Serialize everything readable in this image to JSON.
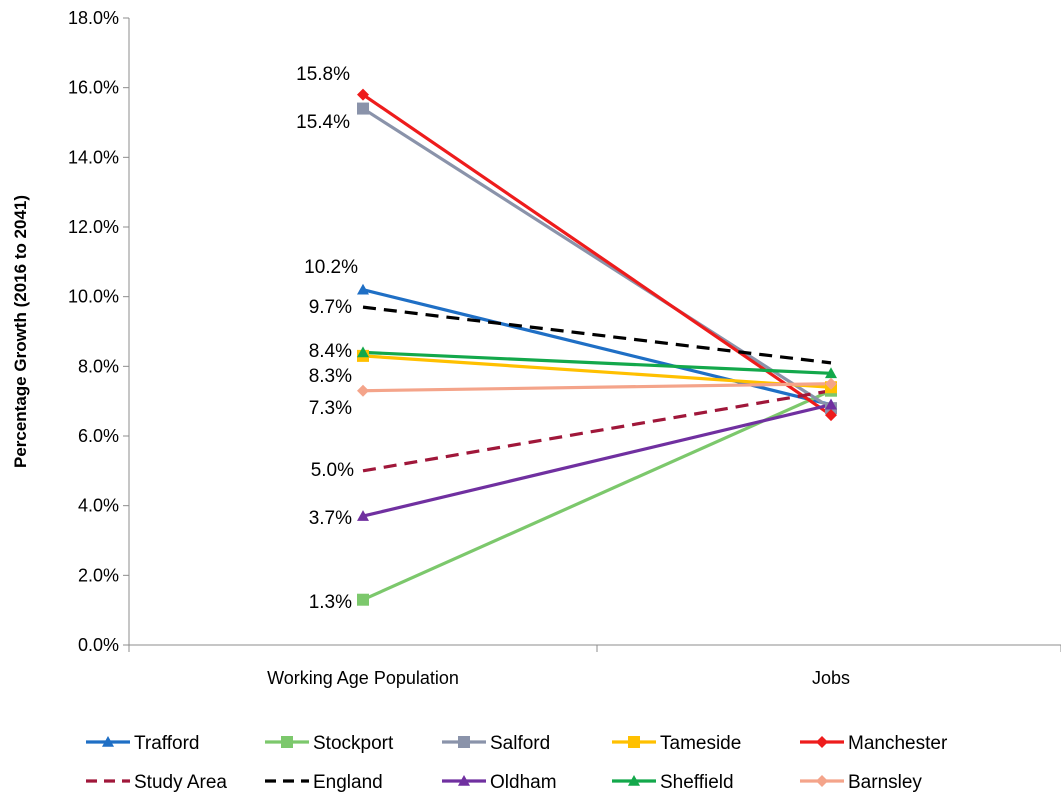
{
  "chart_data": {
    "type": "line",
    "categories": [
      "Working Age Population",
      "Jobs"
    ],
    "ylabel": "Percentage Growth (2016 to 2041)",
    "xlabel": "",
    "ylim": [
      0,
      18
    ],
    "y_ticks": [
      "0.0%",
      "2.0%",
      "4.0%",
      "6.0%",
      "8.0%",
      "10.0%",
      "12.0%",
      "14.0%",
      "16.0%",
      "18.0%"
    ],
    "grid": false,
    "legend_position": "bottom",
    "series": [
      {
        "name": "Trafford",
        "values": [
          10.2,
          6.9
        ],
        "color": "#1F6FC5",
        "marker": "triangle",
        "dashed": false,
        "label": "10.2%"
      },
      {
        "name": "Stockport",
        "values": [
          1.3,
          7.3
        ],
        "color": "#7CC86C",
        "marker": "square",
        "dashed": false,
        "label": "1.3%"
      },
      {
        "name": "Salford",
        "values": [
          15.4,
          6.8
        ],
        "color": "#8A93AA",
        "marker": "square",
        "dashed": false,
        "label": "15.4%"
      },
      {
        "name": "Tameside",
        "values": [
          8.3,
          7.4
        ],
        "color": "#FFC000",
        "marker": "square",
        "dashed": false,
        "label": "8.3%"
      },
      {
        "name": "Manchester",
        "values": [
          15.8,
          6.6
        ],
        "color": "#EE1C1C",
        "marker": "diamond",
        "dashed": false,
        "label": "15.8%"
      },
      {
        "name": "Study Area",
        "values": [
          5.0,
          7.3
        ],
        "color": "#A0173A",
        "marker": "none",
        "dashed": true,
        "label": "5.0%"
      },
      {
        "name": "England",
        "values": [
          9.7,
          8.1
        ],
        "color": "#000000",
        "marker": "none",
        "dashed": true,
        "label": "9.7%"
      },
      {
        "name": "Oldham",
        "values": [
          3.7,
          6.9
        ],
        "color": "#7030A0",
        "marker": "triangle",
        "dashed": false,
        "label": "3.7%"
      },
      {
        "name": "Sheffield",
        "values": [
          8.4,
          7.8
        ],
        "color": "#13A84B",
        "marker": "triangle",
        "dashed": false,
        "label": "8.4%"
      },
      {
        "name": "Barnsley",
        "values": [
          7.3,
          7.5
        ],
        "color": "#F4A48A",
        "marker": "diamond",
        "dashed": false,
        "label": "7.3%"
      }
    ]
  }
}
